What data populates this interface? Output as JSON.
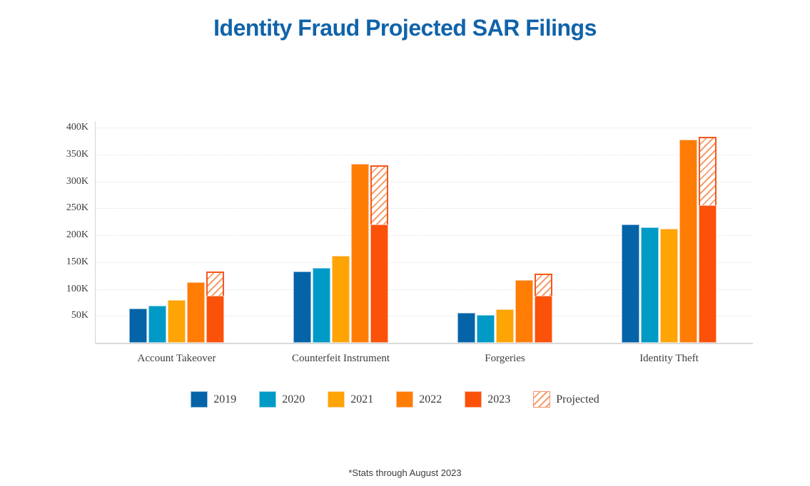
{
  "title": "Identity Fraud Projected SAR Filings",
  "footnote": "*Stats through August 2023",
  "colors": {
    "title_blue": "#1063a9",
    "axis_line": "#d6d6d6",
    "grid_dotted": "#e4e4e4",
    "projected_border": "#f4581d",
    "projected_hatch": "#f59e6b"
  },
  "chart_data": {
    "type": "bar",
    "title": "Identity Fraud Projected SAR Filings",
    "categories": [
      "Account Takeover",
      "Counterfeit Instrument",
      "Forgeries",
      "Identity Theft"
    ],
    "series": [
      {
        "name": "2019",
        "color": "#0563a8",
        "border": "#8fb9da",
        "values": [
          63000,
          133000,
          56000,
          220000
        ]
      },
      {
        "name": "2020",
        "color": "#009ac7",
        "border": "#8ed2e6",
        "values": [
          69000,
          139000,
          52000,
          214000
        ]
      },
      {
        "name": "2021",
        "color": "#ffa405",
        "border": "#ffd59b",
        "values": [
          79000,
          162000,
          62000,
          212000
        ]
      },
      {
        "name": "2022",
        "color": "#ff7d05",
        "border": "#ffc49b",
        "values": [
          112000,
          332000,
          117000,
          377000
        ]
      },
      {
        "name": "2023",
        "color": "#fb5108",
        "border": "#fdb49a",
        "values": [
          88000,
          220000,
          88000,
          256000
        ]
      }
    ],
    "projected": {
      "name": "Projected",
      "values": [
        133000,
        330000,
        129000,
        383000
      ],
      "hatch_color": "#f59e6b",
      "border_color": "#f4581d"
    },
    "y_ticks": [
      "400K",
      "350K",
      "300K",
      "250K",
      "200K",
      "150K",
      "100K",
      "50K"
    ],
    "ylim": [
      0,
      400000
    ],
    "xlabel": "",
    "ylabel": "",
    "grid": "horizontal-dotted",
    "legend_position": "bottom",
    "footnote": "*Stats through August 2023"
  }
}
